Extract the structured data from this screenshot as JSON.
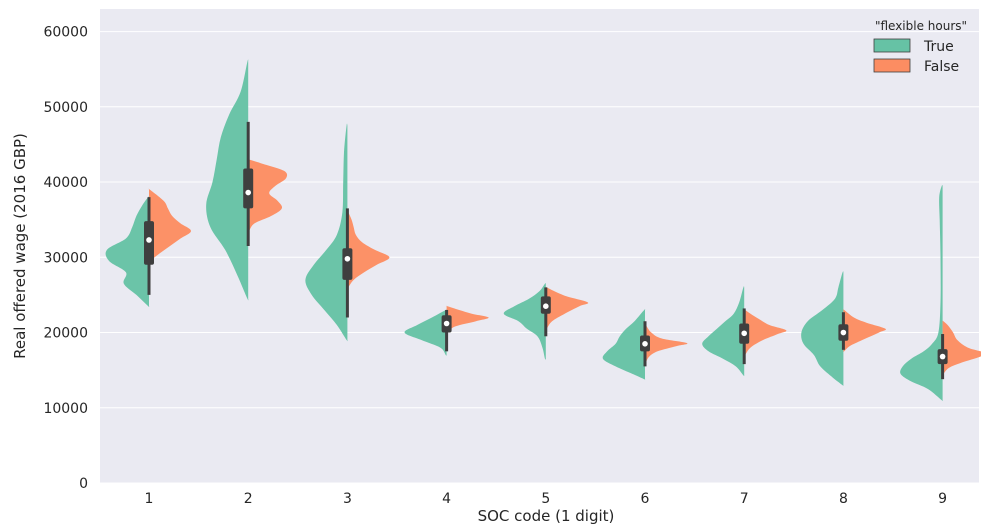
{
  "chart_data": {
    "type": "violin",
    "xlabel": "SOC code (1 digit)",
    "ylabel": "Real offered wage (2016 GBP)",
    "ylim": [
      0,
      63000
    ],
    "yticks": [
      0,
      10000,
      20000,
      30000,
      40000,
      50000,
      60000
    ],
    "yticklabels": [
      "0",
      "10000",
      "20000",
      "30000",
      "40000",
      "50000",
      "60000"
    ],
    "categories": [
      "1",
      "2",
      "3",
      "4",
      "5",
      "6",
      "7",
      "8",
      "9"
    ],
    "grid": true,
    "legend": {
      "title": "\"flexible hours\"",
      "position": "top-right",
      "entries": [
        "True",
        "False"
      ]
    },
    "colors": {
      "True": "#66c2a5",
      "False": "#fc8d62",
      "background": "#eaeaf2",
      "box": "#3f3f3f"
    },
    "series": [
      {
        "name": "True",
        "violins": [
          {
            "category": "1",
            "min": 23500,
            "max": 38000,
            "profile": [
              [
                23500,
                0.02
              ],
              [
                25000,
                0.3
              ],
              [
                26500,
                0.6
              ],
              [
                28000,
                0.55
              ],
              [
                29500,
                0.95
              ],
              [
                31000,
                1.0
              ],
              [
                32500,
                0.55
              ],
              [
                34000,
                0.4
              ],
              [
                35500,
                0.3
              ],
              [
                37000,
                0.15
              ],
              [
                38000,
                0.02
              ]
            ]
          },
          {
            "category": "2",
            "min": 24500,
            "max": 56000,
            "profile": [
              [
                24500,
                0.02
              ],
              [
                27500,
                0.25
              ],
              [
                31000,
                0.55
              ],
              [
                34000,
                0.9
              ],
              [
                37000,
                1.0
              ],
              [
                40000,
                0.85
              ],
              [
                43000,
                0.75
              ],
              [
                46000,
                0.65
              ],
              [
                49000,
                0.45
              ],
              [
                52000,
                0.18
              ],
              [
                56000,
                0.02
              ]
            ]
          },
          {
            "category": "3",
            "min": 19000,
            "max": 47500,
            "profile": [
              [
                19000,
                0.02
              ],
              [
                21000,
                0.25
              ],
              [
                23000,
                0.55
              ],
              [
                25000,
                0.85
              ],
              [
                27000,
                1.0
              ],
              [
                29000,
                0.8
              ],
              [
                31000,
                0.5
              ],
              [
                33000,
                0.25
              ],
              [
                36000,
                0.12
              ],
              [
                40000,
                0.1
              ],
              [
                44000,
                0.08
              ],
              [
                47500,
                0.02
              ]
            ]
          },
          {
            "category": "4",
            "min": 17000,
            "max": 23000,
            "profile": [
              [
                17000,
                0.02
              ],
              [
                18000,
                0.15
              ],
              [
                19000,
                0.6
              ],
              [
                20000,
                1.0
              ],
              [
                21000,
                0.7
              ],
              [
                22000,
                0.35
              ],
              [
                23000,
                0.02
              ]
            ]
          },
          {
            "category": "5",
            "min": 16500,
            "max": 26500,
            "profile": [
              [
                16500,
                0.02
              ],
              [
                18000,
                0.08
              ],
              [
                19500,
                0.2
              ],
              [
                20500,
                0.45
              ],
              [
                21500,
                0.65
              ],
              [
                22500,
                1.0
              ],
              [
                23500,
                0.75
              ],
              [
                24500,
                0.4
              ],
              [
                25500,
                0.15
              ],
              [
                26500,
                0.02
              ]
            ]
          },
          {
            "category": "6",
            "min": 13800,
            "max": 23000,
            "profile": [
              [
                13800,
                0.02
              ],
              [
                14500,
                0.3
              ],
              [
                15500,
                0.7
              ],
              [
                16500,
                1.0
              ],
              [
                17500,
                0.9
              ],
              [
                18500,
                0.7
              ],
              [
                19500,
                0.6
              ],
              [
                20500,
                0.45
              ],
              [
                21500,
                0.25
              ],
              [
                23000,
                0.02
              ]
            ]
          },
          {
            "category": "7",
            "min": 14300,
            "max": 26000,
            "profile": [
              [
                14300,
                0.02
              ],
              [
                15500,
                0.2
              ],
              [
                16500,
                0.5
              ],
              [
                17500,
                0.85
              ],
              [
                18500,
                1.0
              ],
              [
                19500,
                0.85
              ],
              [
                20500,
                0.65
              ],
              [
                21500,
                0.45
              ],
              [
                22500,
                0.25
              ],
              [
                24000,
                0.12
              ],
              [
                26000,
                0.02
              ]
            ]
          },
          {
            "category": "8",
            "min": 13000,
            "max": 28000,
            "profile": [
              [
                13000,
                0.02
              ],
              [
                14000,
                0.25
              ],
              [
                15500,
                0.55
              ],
              [
                17000,
                0.7
              ],
              [
                18500,
                0.95
              ],
              [
                20000,
                1.0
              ],
              [
                21500,
                0.85
              ],
              [
                23000,
                0.5
              ],
              [
                24500,
                0.2
              ],
              [
                26000,
                0.12
              ],
              [
                28000,
                0.02
              ]
            ]
          },
          {
            "category": "9",
            "min": 11000,
            "max": 39500,
            "profile": [
              [
                11000,
                0.02
              ],
              [
                12500,
                0.35
              ],
              [
                13500,
                0.75
              ],
              [
                14500,
                1.0
              ],
              [
                15500,
                0.95
              ],
              [
                16500,
                0.75
              ],
              [
                17500,
                0.45
              ],
              [
                18500,
                0.25
              ],
              [
                20000,
                0.1
              ],
              [
                24000,
                0.05
              ],
              [
                30000,
                0.05
              ],
              [
                35000,
                0.07
              ],
              [
                38000,
                0.08
              ],
              [
                39500,
                0.02
              ]
            ]
          }
        ]
      },
      {
        "name": "False",
        "violins": [
          {
            "category": "1",
            "min": 29500,
            "max": 39000,
            "profile": [
              [
                29500,
                0.02
              ],
              [
                30500,
                0.25
              ],
              [
                31500,
                0.5
              ],
              [
                32500,
                0.75
              ],
              [
                33500,
                1.0
              ],
              [
                34500,
                0.75
              ],
              [
                35500,
                0.55
              ],
              [
                36500,
                0.45
              ],
              [
                37500,
                0.35
              ],
              [
                39000,
                0.02
              ]
            ]
          },
          {
            "category": "2",
            "min": 33500,
            "max": 43000,
            "profile": [
              [
                33500,
                0.02
              ],
              [
                34500,
                0.15
              ],
              [
                35500,
                0.55
              ],
              [
                36500,
                0.8
              ],
              [
                37500,
                0.7
              ],
              [
                38500,
                0.5
              ],
              [
                39500,
                0.65
              ],
              [
                40500,
                0.9
              ],
              [
                41500,
                0.85
              ],
              [
                42500,
                0.3
              ],
              [
                43000,
                0.02
              ]
            ]
          },
          {
            "category": "3",
            "min": 26000,
            "max": 36000,
            "profile": [
              [
                26000,
                0.02
              ],
              [
                27000,
                0.15
              ],
              [
                28000,
                0.4
              ],
              [
                29000,
                0.7
              ],
              [
                30000,
                1.0
              ],
              [
                31000,
                0.65
              ],
              [
                32000,
                0.35
              ],
              [
                33000,
                0.2
              ],
              [
                34000,
                0.15
              ],
              [
                35000,
                0.1
              ],
              [
                36000,
                0.02
              ]
            ]
          },
          {
            "category": "4",
            "min": 20000,
            "max": 23500,
            "profile": [
              [
                20000,
                0.02
              ],
              [
                20800,
                0.2
              ],
              [
                21500,
                0.7
              ],
              [
                22000,
                1.0
              ],
              [
                22500,
                0.6
              ],
              [
                23000,
                0.3
              ],
              [
                23500,
                0.02
              ]
            ]
          },
          {
            "category": "5",
            "min": 20500,
            "max": 26000,
            "profile": [
              [
                20500,
                0.02
              ],
              [
                21500,
                0.15
              ],
              [
                22500,
                0.45
              ],
              [
                23500,
                0.8
              ],
              [
                24000,
                1.0
              ],
              [
                24800,
                0.5
              ],
              [
                25500,
                0.2
              ],
              [
                26000,
                0.02
              ]
            ]
          },
          {
            "category": "6",
            "min": 16000,
            "max": 21000,
            "profile": [
              [
                16000,
                0.02
              ],
              [
                16800,
                0.1
              ],
              [
                17500,
                0.3
              ],
              [
                18200,
                0.75
              ],
              [
                18600,
                1.0
              ],
              [
                19200,
                0.4
              ],
              [
                20000,
                0.15
              ],
              [
                21000,
                0.02
              ]
            ]
          },
          {
            "category": "7",
            "min": 17000,
            "max": 23000,
            "profile": [
              [
                17000,
                0.02
              ],
              [
                18000,
                0.15
              ],
              [
                19000,
                0.45
              ],
              [
                19800,
                0.8
              ],
              [
                20300,
                1.0
              ],
              [
                21000,
                0.6
              ],
              [
                21800,
                0.35
              ],
              [
                22500,
                0.15
              ],
              [
                23000,
                0.02
              ]
            ]
          },
          {
            "category": "8",
            "min": 17500,
            "max": 23000,
            "profile": [
              [
                17500,
                0.02
              ],
              [
                18200,
                0.15
              ],
              [
                19000,
                0.45
              ],
              [
                20000,
                0.85
              ],
              [
                20500,
                1.0
              ],
              [
                21300,
                0.55
              ],
              [
                22000,
                0.25
              ],
              [
                23000,
                0.02
              ]
            ]
          },
          {
            "category": "9",
            "min": 14500,
            "max": 21500,
            "profile": [
              [
                14500,
                0.02
              ],
              [
                15300,
                0.15
              ],
              [
                16000,
                0.45
              ],
              [
                16800,
                0.9
              ],
              [
                17300,
                1.0
              ],
              [
                18000,
                0.6
              ],
              [
                19000,
                0.35
              ],
              [
                20000,
                0.25
              ],
              [
                21000,
                0.12
              ],
              [
                21500,
                0.02
              ]
            ]
          }
        ]
      }
    ],
    "boxes": [
      {
        "category": "1",
        "whisker_low": 25000,
        "q1": 29000,
        "median": 32300,
        "q3": 34800,
        "whisker_high": 38000
      },
      {
        "category": "2",
        "whisker_low": 31500,
        "q1": 36500,
        "median": 38600,
        "q3": 41800,
        "whisker_high": 48000
      },
      {
        "category": "3",
        "whisker_low": 22000,
        "q1": 27000,
        "median": 29800,
        "q3": 31200,
        "whisker_high": 36500
      },
      {
        "category": "4",
        "whisker_low": 17500,
        "q1": 20000,
        "median": 21200,
        "q3": 22300,
        "whisker_high": 23000
      },
      {
        "category": "5",
        "whisker_low": 19500,
        "q1": 22500,
        "median": 23500,
        "q3": 24800,
        "whisker_high": 26000
      },
      {
        "category": "6",
        "whisker_low": 15500,
        "q1": 17500,
        "median": 18500,
        "q3": 19600,
        "whisker_high": 21500
      },
      {
        "category": "7",
        "whisker_low": 15800,
        "q1": 18500,
        "median": 19900,
        "q3": 21200,
        "whisker_high": 23200
      },
      {
        "category": "8",
        "whisker_low": 17700,
        "q1": 18900,
        "median": 20000,
        "q3": 21100,
        "whisker_high": 22700
      },
      {
        "category": "9",
        "whisker_low": 13800,
        "q1": 15800,
        "median": 16800,
        "q3": 17800,
        "whisker_high": 19800
      }
    ]
  }
}
